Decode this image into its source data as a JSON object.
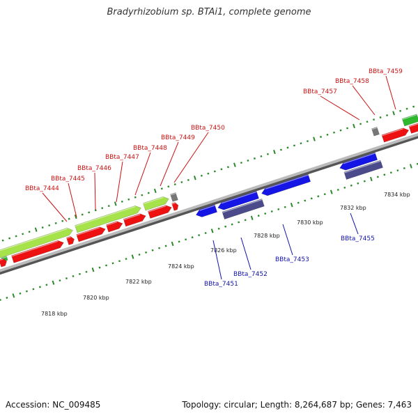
{
  "title": "Bradyrhizobium sp. BTAi1, complete genome",
  "footer": {
    "accession": "Accession: NC_009485",
    "summary": "Topology: circular; Length: 8,264,687 bp; Genes: 7,463"
  },
  "colors": {
    "forward_cds": "#ee1111",
    "reverse_cds": "#1515e6",
    "reverse_cds_dark": "#4b4b8c",
    "forward_gene": "#a6e34a",
    "gene_green": "#2db82d",
    "pseudo": "#777777",
    "label_forward": "#cc1111",
    "label_reverse": "#1111aa",
    "tick": "#2a8a2a"
  },
  "scale": {
    "unit": "kbp",
    "ticks": [
      {
        "value": 7818,
        "label": "7818 kbp"
      },
      {
        "value": 7820,
        "label": "7820 kbp"
      },
      {
        "value": 7822,
        "label": "7822 kbp"
      },
      {
        "value": 7824,
        "label": "7824 kbp"
      },
      {
        "value": 7826,
        "label": "7826 kbp"
      },
      {
        "value": 7828,
        "label": "7828 kbp"
      },
      {
        "value": 7830,
        "label": "7830 kbp"
      },
      {
        "value": 7832,
        "label": "7832 kbp"
      },
      {
        "value": 7834,
        "label": "7834 kbp"
      }
    ]
  },
  "labels": {
    "forward": [
      "BBta_7444",
      "BBta_7445",
      "BBta_7446",
      "BBta_7447",
      "BBta_7448",
      "BBta_7449",
      "BBta_7450",
      "BBta_7457",
      "BBta_7458",
      "BBta_7459"
    ],
    "reverse": [
      "BBta_7451",
      "BBta_7452",
      "BBta_7453",
      "BBta_7455"
    ]
  }
}
